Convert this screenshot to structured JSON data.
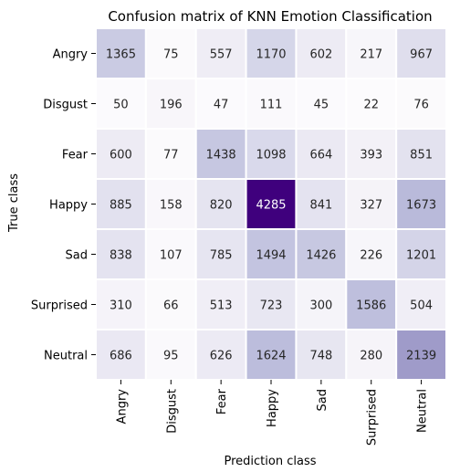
{
  "chart_data": {
    "type": "heatmap",
    "title": "Confusion matrix of KNN Emotion Classification",
    "xlabel": "Prediction class",
    "ylabel": "True class",
    "x_categories": [
      "Angry",
      "Disgust",
      "Fear",
      "Happy",
      "Sad",
      "Surprised",
      "Neutral"
    ],
    "y_categories": [
      "Angry",
      "Disgust",
      "Fear",
      "Happy",
      "Sad",
      "Surprised",
      "Neutral"
    ],
    "values": [
      [
        1365,
        75,
        557,
        1170,
        602,
        217,
        967
      ],
      [
        50,
        196,
        47,
        111,
        45,
        22,
        76
      ],
      [
        600,
        77,
        1438,
        1098,
        664,
        393,
        851
      ],
      [
        885,
        158,
        820,
        4285,
        841,
        327,
        1673
      ],
      [
        838,
        107,
        785,
        1494,
        1426,
        226,
        1201
      ],
      [
        310,
        66,
        513,
        723,
        300,
        1586,
        504
      ],
      [
        686,
        95,
        626,
        1624,
        748,
        280,
        2139
      ]
    ],
    "colormap": "Purples",
    "colorbar": false,
    "annotations": true
  }
}
